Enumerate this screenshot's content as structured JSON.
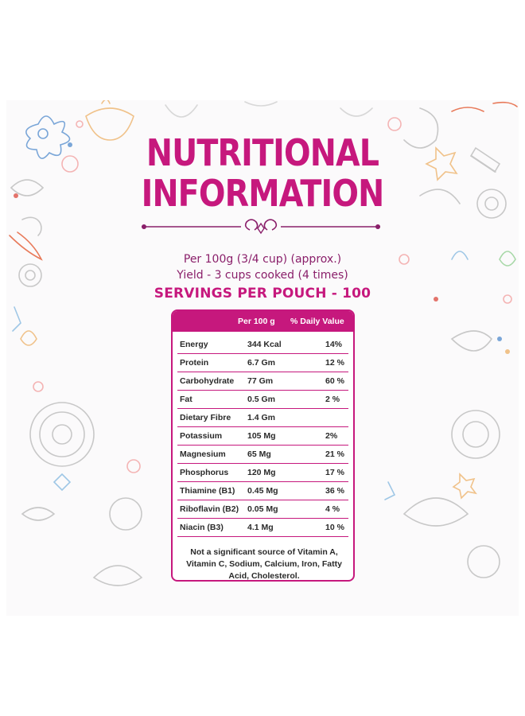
{
  "header": {
    "title_line1": "NUTRITIONAL",
    "title_line2": "INFORMATION",
    "serving_line": "Per 100g (3/4 cup) (approx.)",
    "yield_line": "Yield - 3 cups cooked (4 times)",
    "servings": "SERVINGS PER POUCH - 100"
  },
  "table": {
    "col_amount": "Per 100 g",
    "col_dv": "% Daily Value",
    "rows": [
      {
        "name": "Energy",
        "amount": "344 Kcal",
        "dv": "14%"
      },
      {
        "name": "Protein",
        "amount": "6.7 Gm",
        "dv": "12 %"
      },
      {
        "name": "Carbohydrate",
        "amount": "77 Gm",
        "dv": "60 %"
      },
      {
        "name": "Fat",
        "amount": "0.5 Gm",
        "dv": "2 %"
      },
      {
        "name": "Dietary Fibre",
        "amount": "1.4 Gm",
        "dv": ""
      },
      {
        "name": "Potassium",
        "amount": "105 Mg",
        "dv": "2%"
      },
      {
        "name": "Magnesium",
        "amount": "65 Mg",
        "dv": "21 %"
      },
      {
        "name": "Phosphorus",
        "amount": "120 Mg",
        "dv": "17 %"
      },
      {
        "name": "Thiamine (B1)",
        "amount": "0.45 Mg",
        "dv": "36 %"
      },
      {
        "name": "Riboflavin (B2)",
        "amount": "0.05 Mg",
        "dv": "4 %"
      },
      {
        "name": "Niacin (B3)",
        "amount": "4.1 Mg",
        "dv": "10 %"
      }
    ],
    "footnote": "Not a significant source of Vitamin A, Vitamin C, Sodium, Calcium, Iron, Fatty Acid, Cholesterol."
  },
  "colors": {
    "accent": "#c6187d",
    "subtitle": "#8a1f6a",
    "text": "#2a2a2a",
    "panel": "#fbfafb"
  }
}
